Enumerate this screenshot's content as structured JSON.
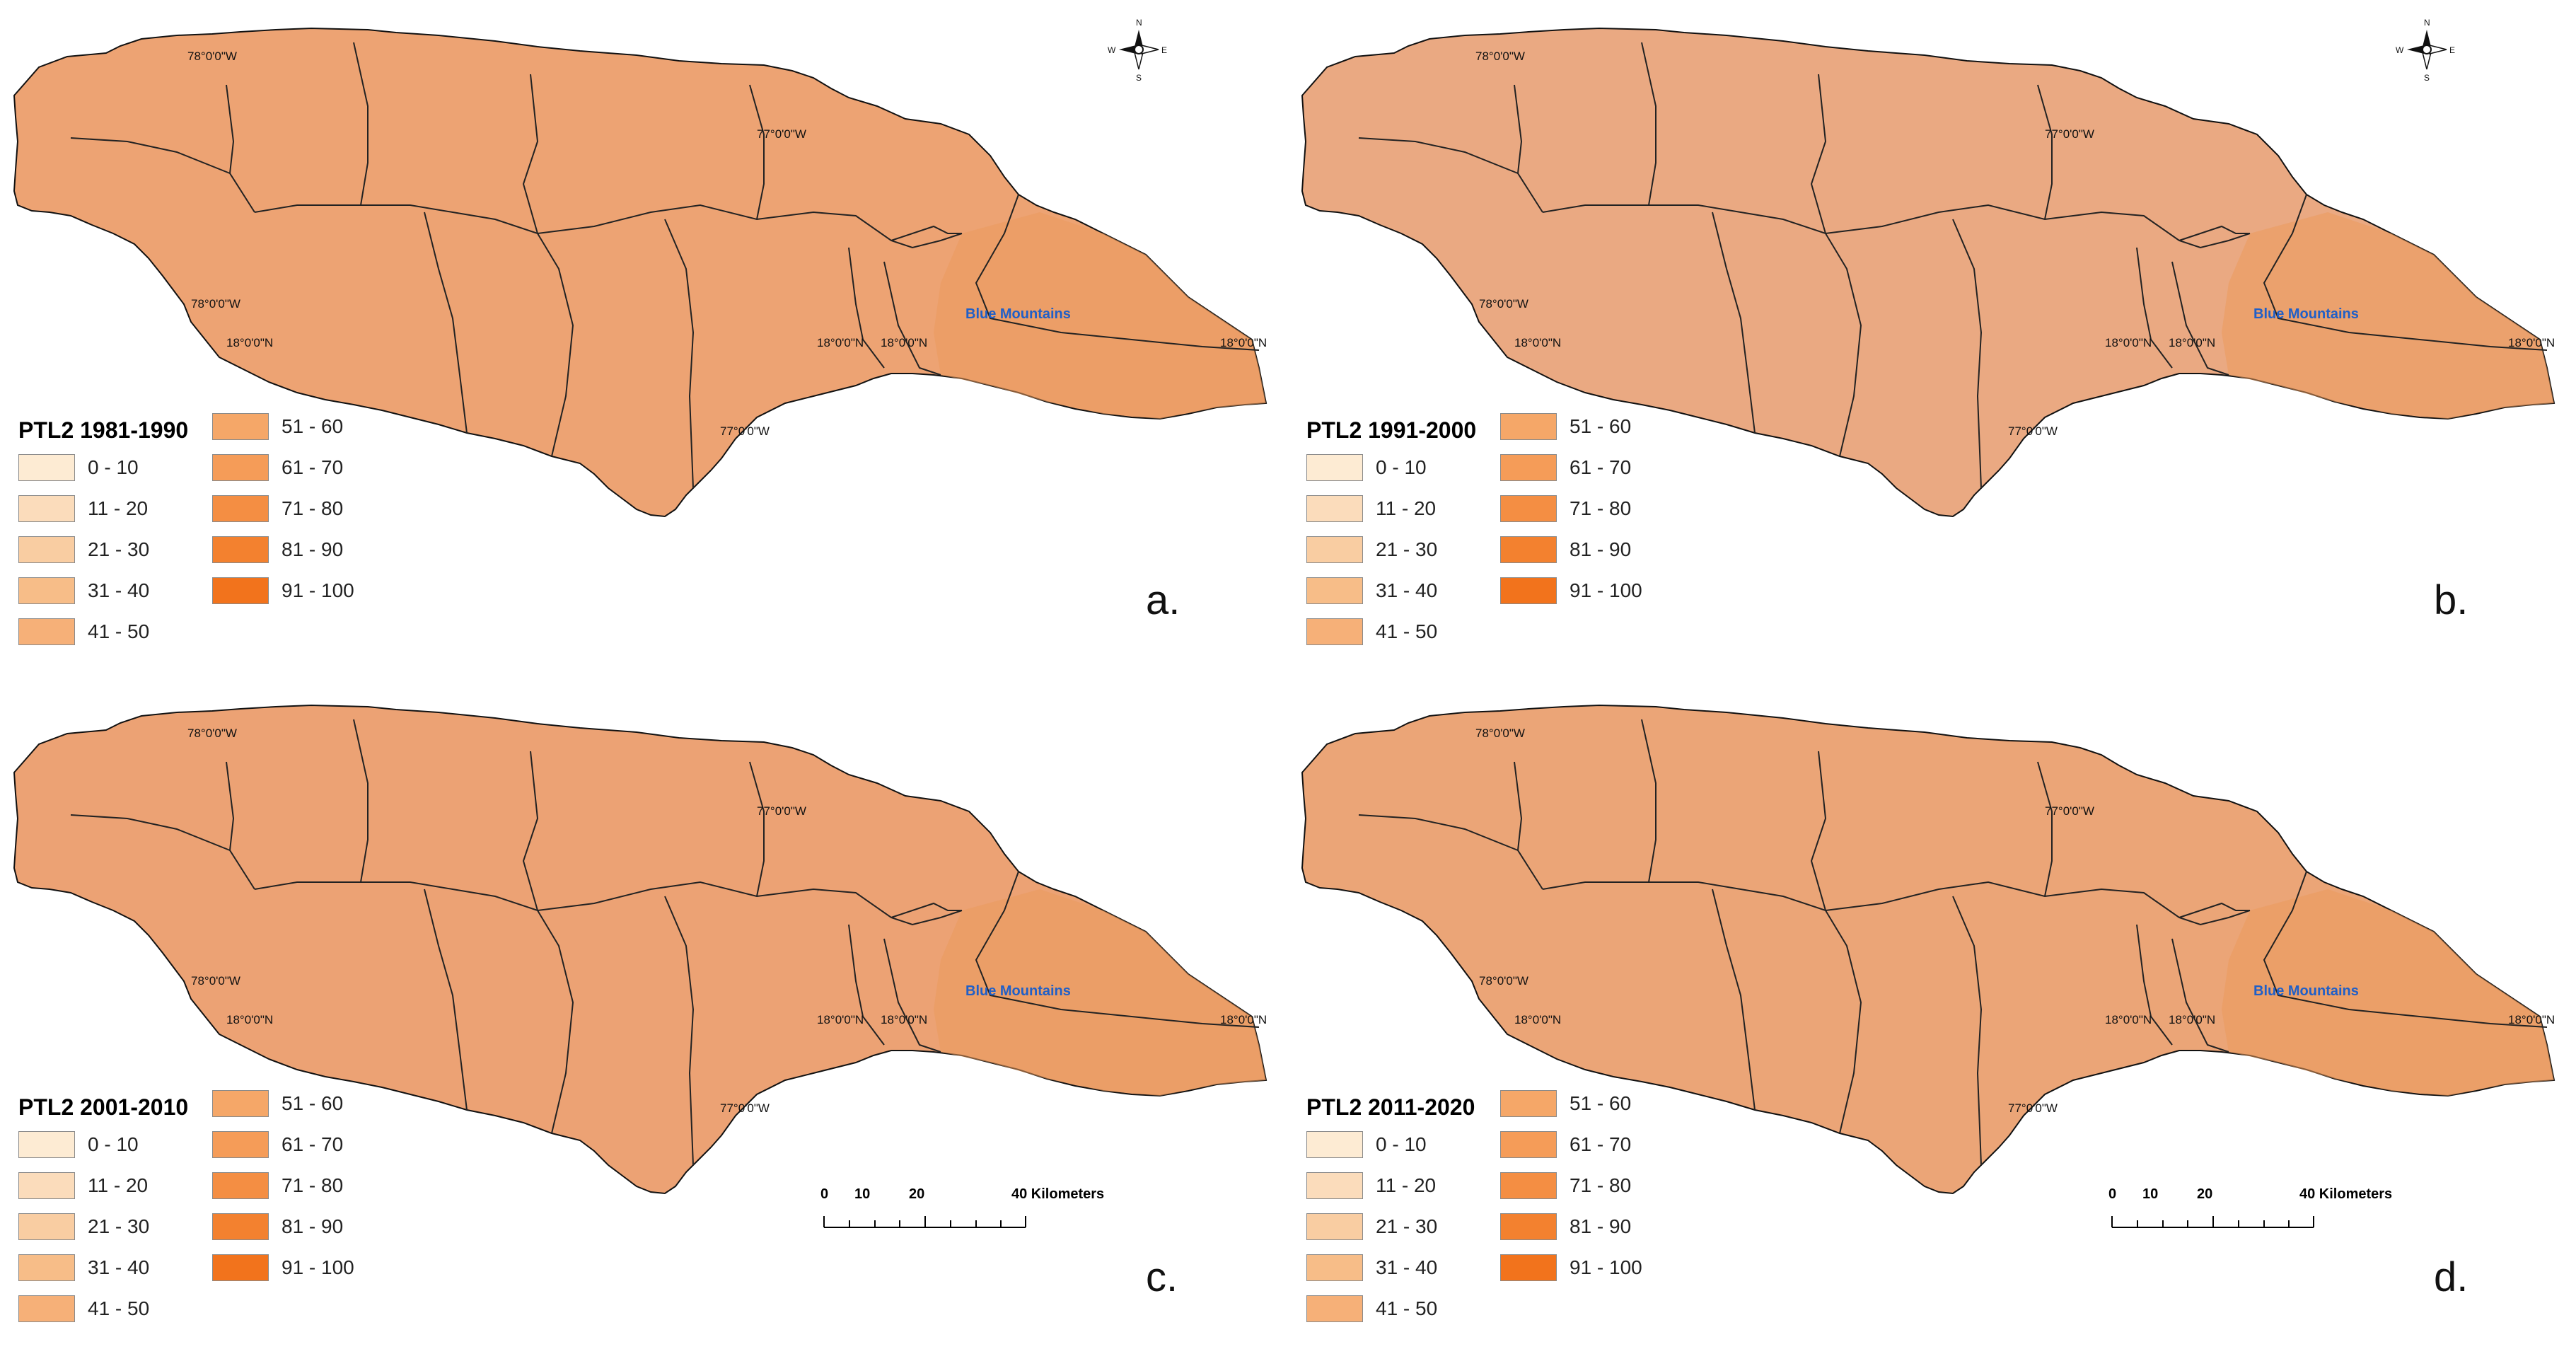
{
  "panels": [
    {
      "id": "a",
      "title": "PTL2 1981-1990",
      "letter": "a.",
      "has_north_arrow": true,
      "has_scale_bar": false
    },
    {
      "id": "b",
      "title": "PTL2 1991-2000",
      "letter": "b.",
      "has_north_arrow": true,
      "has_scale_bar": false
    },
    {
      "id": "c",
      "title": "PTL2 2001-2010",
      "letter": "c.",
      "has_north_arrow": false,
      "has_scale_bar": true
    },
    {
      "id": "d",
      "title": "PTL2 2011-2020",
      "letter": "d.",
      "has_north_arrow": false,
      "has_scale_bar": true
    }
  ],
  "legend_classes": [
    {
      "label": "0 - 10",
      "color": "#fdebd3"
    },
    {
      "label": "11 - 20",
      "color": "#fbdcbb"
    },
    {
      "label": "21 - 30",
      "color": "#f9cda2"
    },
    {
      "label": "31 - 40",
      "color": "#f7bd88"
    },
    {
      "label": "41 - 50",
      "color": "#f6b078"
    },
    {
      "label": "51 - 60",
      "color": "#f5a768"
    },
    {
      "label": "61 - 70",
      "color": "#f59c58"
    },
    {
      "label": "71 - 80",
      "color": "#f48e43"
    },
    {
      "label": "81 - 90",
      "color": "#f3812f"
    },
    {
      "label": "91 - 100",
      "color": "#f2731c"
    }
  ],
  "graticule": {
    "lon_78": "78°0'0\"W",
    "lon_77": "77°0'0\"W",
    "lat_18": "18°0'0\"N"
  },
  "place_label": "Blue Mountains",
  "north_arrow": {
    "n": "N",
    "s": "S",
    "e": "E",
    "w": "W"
  },
  "scale_bar": {
    "ticks": [
      "0",
      "10",
      "20",
      "40 Kilometers"
    ]
  }
}
